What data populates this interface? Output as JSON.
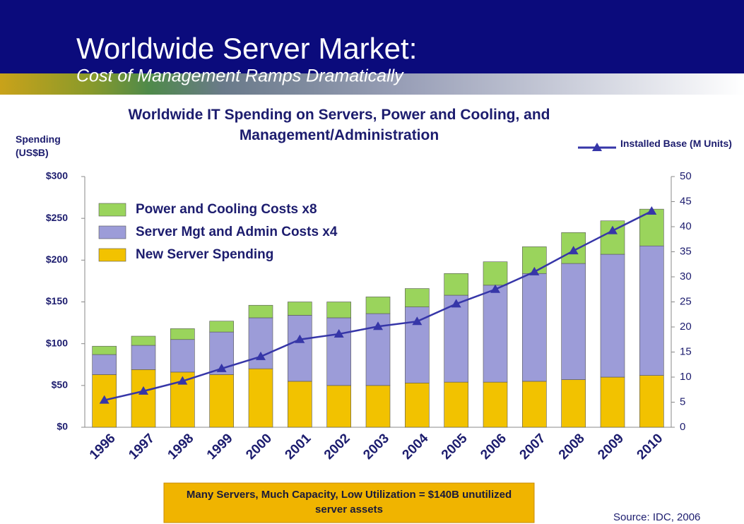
{
  "header": {
    "title": "Worldwide Server Market:",
    "subtitle": "Cost of Management Ramps Dramatically"
  },
  "chart_data": {
    "type": "bar",
    "stacked": true,
    "title": "Worldwide IT Spending on Servers, Power and Cooling, and Management/Administration",
    "y_label": "Spending (US$B)",
    "categories": [
      "1996",
      "1997",
      "1998",
      "1999",
      "2000",
      "2001",
      "2002",
      "2003",
      "2004",
      "2005",
      "2006",
      "2007",
      "2008",
      "2009",
      "2010"
    ],
    "series": [
      {
        "name": "New Server Spending",
        "color": "#f2c200",
        "values": [
          63,
          69,
          66,
          63,
          70,
          55,
          50,
          50,
          53,
          54,
          54,
          55,
          57,
          60,
          62
        ]
      },
      {
        "name": "Server Mgt and Admin Costs x4",
        "color": "#9c9cd8",
        "values": [
          24,
          29,
          39,
          51,
          61,
          79,
          81,
          86,
          91,
          104,
          116,
          129,
          139,
          147,
          155
        ]
      },
      {
        "name": "Power and Cooling Costs x8",
        "color": "#9ad45c",
        "values": [
          10,
          11,
          13,
          13,
          15,
          16,
          19,
          20,
          22,
          26,
          28,
          32,
          37,
          40,
          44
        ]
      },
      {
        "name": "Installed Base (M Units)",
        "type": "line",
        "axis": "y2",
        "color": "#3636a8",
        "values": [
          5.4,
          7.2,
          9.2,
          11.7,
          14.1,
          17.5,
          18.6,
          20.1,
          21.1,
          24.6,
          27.5,
          31.0,
          35.2,
          39.2,
          43.1
        ]
      }
    ],
    "ylim": [
      0,
      300
    ],
    "yticks": [
      {
        "value": 0,
        "label": "$0"
      },
      {
        "value": 50,
        "label": "$50"
      },
      {
        "value": 100,
        "label": "$100"
      },
      {
        "value": 150,
        "label": "$150"
      },
      {
        "value": 200,
        "label": "$200"
      },
      {
        "value": 250,
        "label": "$250"
      },
      {
        "value": 300,
        "label": "$300"
      }
    ],
    "y2lim": [
      0,
      50
    ],
    "y2ticks": [
      0,
      5,
      10,
      15,
      20,
      25,
      30,
      35,
      40,
      45,
      50
    ],
    "grid": false,
    "legend": "top-left",
    "annotation": "Many Servers, Much Capacity, Low Utilization = $140B unutilized server assets",
    "source": "Source: IDC, 2006"
  }
}
